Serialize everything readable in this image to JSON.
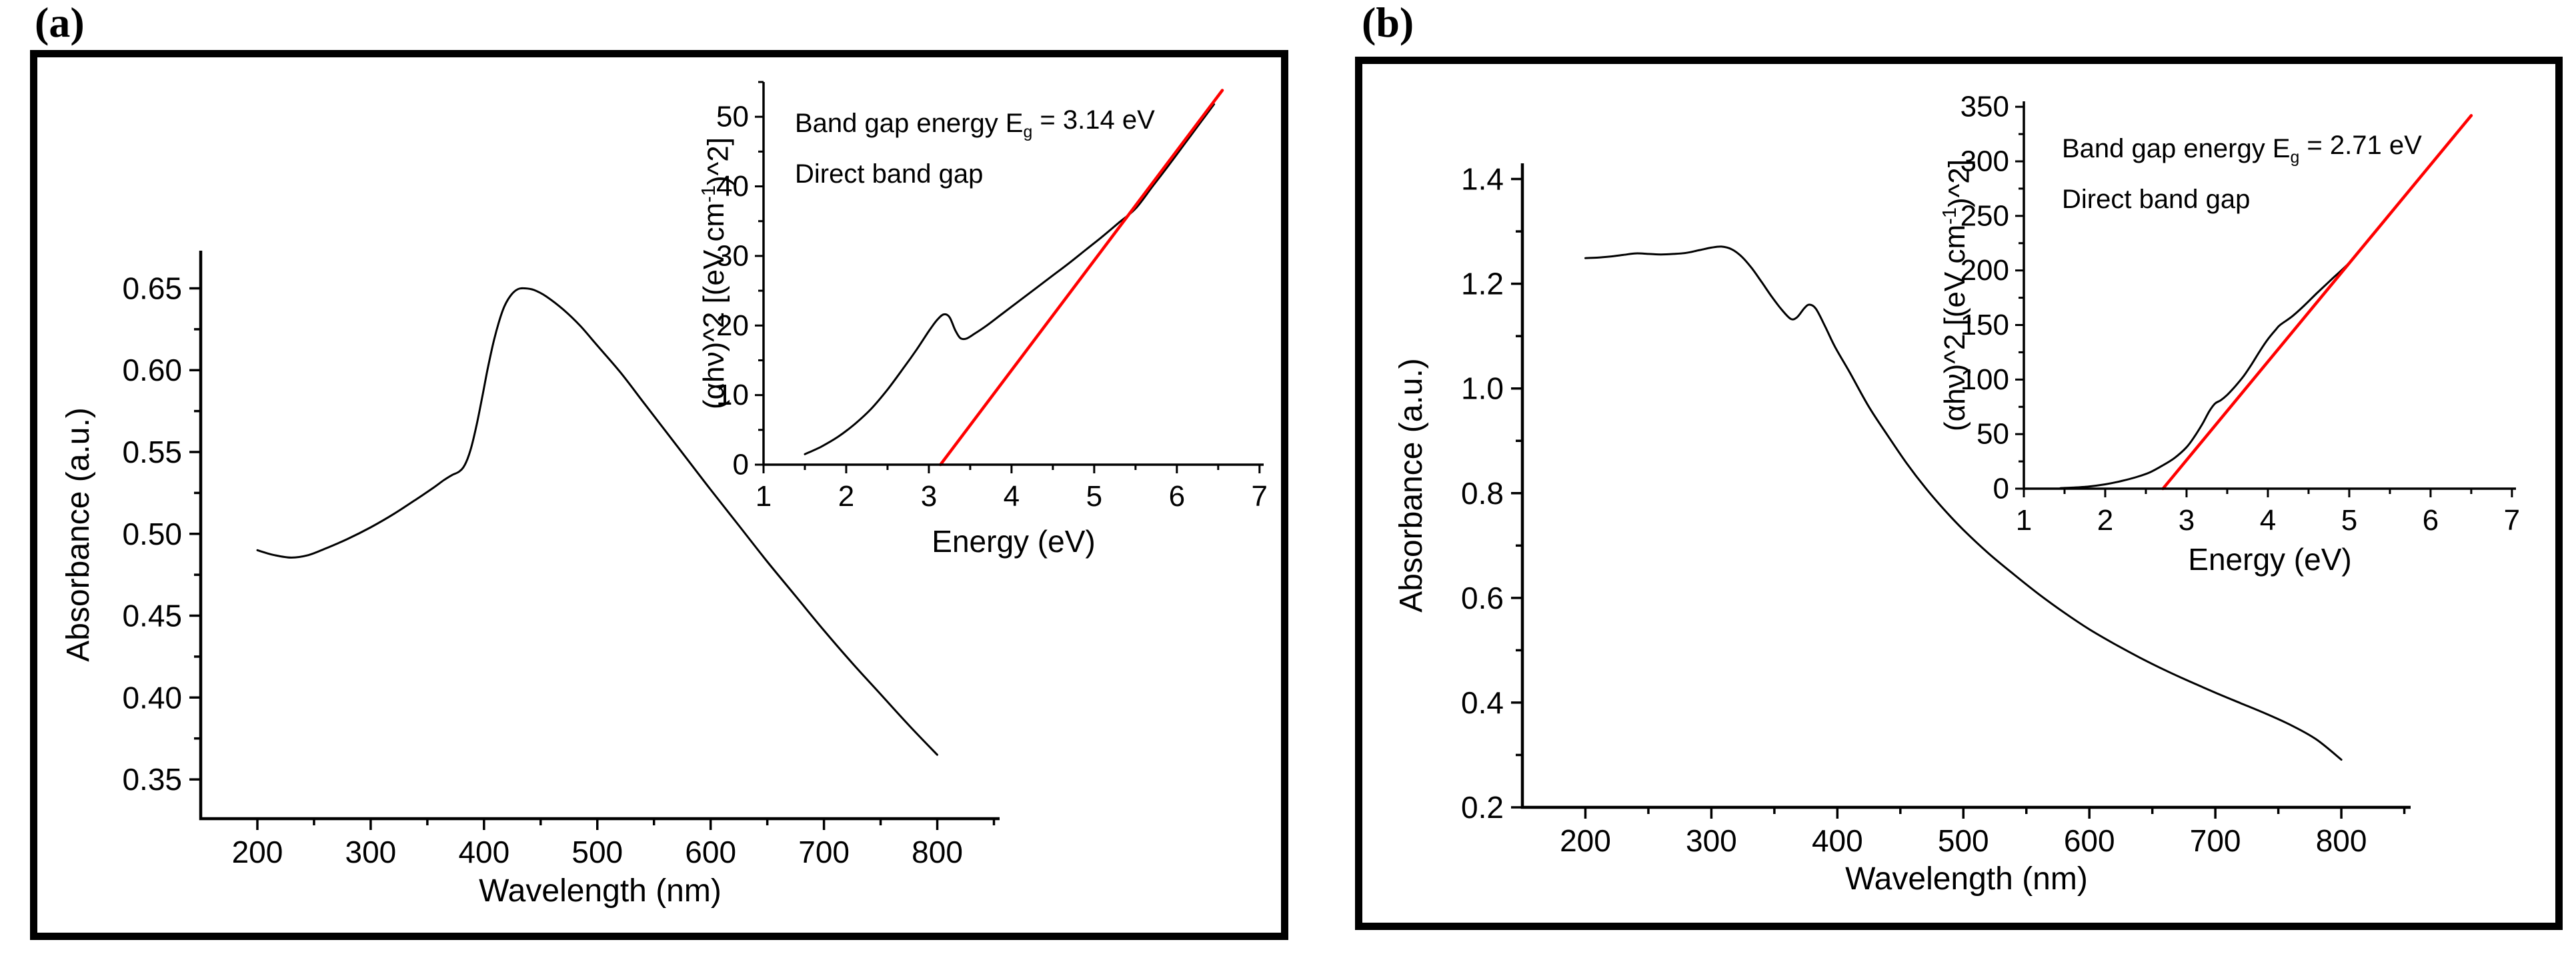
{
  "panels": [
    {
      "id": "a",
      "label": "(a)"
    },
    {
      "id": "b",
      "label": "(b)"
    }
  ],
  "colors": {
    "axis": "#000000",
    "curve": "#000000",
    "fit_line": "#ff0000",
    "background": "#ffffff"
  },
  "chart_data": [
    {
      "id": "main-a",
      "panel": "a",
      "type": "line",
      "title": "",
      "xlabel": "Wavelength (nm)",
      "ylabel": "Absorbance (a.u.)",
      "xlim": [
        150,
        855
      ],
      "ylim": [
        0.326,
        0.673
      ],
      "grid": false,
      "legend": "none",
      "x_major_ticks": [
        200,
        300,
        400,
        500,
        600,
        700,
        800
      ],
      "x_major_labels": [
        "200",
        "300",
        "400",
        "500",
        "600",
        "700",
        "800"
      ],
      "x_minor_ticks": [
        250,
        350,
        450,
        550,
        650,
        750,
        850
      ],
      "y_major_ticks": [
        0.35,
        0.4,
        0.45,
        0.5,
        0.55,
        0.6,
        0.65
      ],
      "y_major_labels": [
        "0.35",
        "0.40",
        "0.45",
        "0.50",
        "0.55",
        "0.60",
        "0.65"
      ],
      "y_minor_ticks": [
        0.375,
        0.425,
        0.475,
        0.525,
        0.575,
        0.625
      ],
      "series": [
        {
          "name": "absorbance-spectrum",
          "color": "#000000",
          "kind": "curve",
          "x": [
            200,
            215,
            230,
            245,
            260,
            280,
            300,
            320,
            340,
            355,
            365,
            372,
            378,
            383,
            388,
            393,
            398,
            403,
            408,
            413,
            418,
            424,
            430,
            436,
            444,
            455,
            470,
            485,
            500,
            520,
            540,
            560,
            580,
            600,
            625,
            650,
            675,
            700,
            725,
            750,
            775,
            800
          ],
          "y": [
            0.49,
            0.487,
            0.4855,
            0.487,
            0.491,
            0.497,
            0.504,
            0.512,
            0.521,
            0.528,
            0.533,
            0.536,
            0.538,
            0.542,
            0.551,
            0.565,
            0.582,
            0.6,
            0.616,
            0.629,
            0.639,
            0.646,
            0.6495,
            0.65,
            0.649,
            0.645,
            0.637,
            0.627,
            0.615,
            0.599,
            0.581,
            0.563,
            0.545,
            0.527,
            0.505,
            0.483,
            0.462,
            0.441,
            0.421,
            0.402,
            0.383,
            0.365
          ]
        }
      ]
    },
    {
      "id": "inset-a",
      "panel": "a",
      "type": "line",
      "title": "",
      "xlabel": "Energy (eV)",
      "ylabel": "(αhν)^2 [(eV cm⁻¹)^2]",
      "ylabel_parts": {
        "pre": "(αhν)^2 [(eV cm",
        "sup": "-1",
        "post": ")^2]"
      },
      "annotation": {
        "line1_pre": "Band gap energy E",
        "line1_sub": "g",
        "line1_post": " = 3.14 eV",
        "line2": "Direct band gap"
      },
      "band_gap_ev": 3.14,
      "xlim": [
        1,
        7.05
      ],
      "ylim": [
        0,
        55
      ],
      "grid": false,
      "legend": "none",
      "x_major_ticks": [
        1,
        2,
        3,
        4,
        5,
        6,
        7
      ],
      "x_major_labels": [
        "1",
        "2",
        "3",
        "4",
        "5",
        "6",
        "7"
      ],
      "x_minor_ticks": [
        1.5,
        2.5,
        3.5,
        4.5,
        5.5,
        6.5
      ],
      "y_major_ticks": [
        0,
        10,
        20,
        30,
        40,
        50
      ],
      "y_major_labels": [
        "0",
        "10",
        "20",
        "30",
        "40",
        "50"
      ],
      "y_minor_ticks": [
        5,
        15,
        25,
        35,
        45,
        55
      ],
      "series": [
        {
          "name": "tauc-curve",
          "color": "#000000",
          "kind": "curve",
          "x": [
            1.5,
            1.7,
            1.9,
            2.1,
            2.3,
            2.5,
            2.7,
            2.85,
            3.0,
            3.1,
            3.18,
            3.25,
            3.32,
            3.38,
            3.45,
            3.55,
            3.7,
            3.9,
            4.1,
            4.3,
            4.5,
            4.7,
            4.9,
            5.1,
            5.3,
            5.5,
            5.7,
            5.9,
            6.1,
            6.3,
            6.45
          ],
          "y": [
            1.5,
            2.6,
            4.0,
            5.8,
            8.0,
            10.8,
            14.0,
            16.5,
            19.2,
            20.8,
            21.6,
            21.2,
            19.3,
            18.2,
            18.1,
            18.8,
            20.0,
            21.8,
            23.6,
            25.4,
            27.2,
            29.0,
            30.9,
            32.8,
            34.8,
            36.8,
            39.9,
            43.0,
            46.2,
            49.4,
            51.8
          ]
        },
        {
          "name": "bandgap-fit-line",
          "color": "#ff0000",
          "kind": "fit",
          "x": [
            3.14,
            6.55
          ],
          "y": [
            0,
            53.8
          ]
        }
      ]
    },
    {
      "id": "main-b",
      "panel": "b",
      "type": "line",
      "title": "",
      "xlabel": "Wavelength (nm)",
      "ylabel": "Absorbance (a.u.)",
      "xlim": [
        150,
        855
      ],
      "ylim": [
        0.2,
        1.43
      ],
      "grid": false,
      "legend": "none",
      "x_major_ticks": [
        200,
        300,
        400,
        500,
        600,
        700,
        800
      ],
      "x_major_labels": [
        "200",
        "300",
        "400",
        "500",
        "600",
        "700",
        "800"
      ],
      "x_minor_ticks": [
        250,
        350,
        450,
        550,
        650,
        750,
        850
      ],
      "y_major_ticks": [
        0.2,
        0.4,
        0.6,
        0.8,
        1.0,
        1.2,
        1.4
      ],
      "y_major_labels": [
        "0.2",
        "0.4",
        "0.6",
        "0.8",
        "1.0",
        "1.2",
        "1.4"
      ],
      "y_minor_ticks": [
        0.3,
        0.5,
        0.7,
        0.9,
        1.1,
        1.3
      ],
      "series": [
        {
          "name": "absorbance-spectrum",
          "color": "#000000",
          "kind": "curve",
          "x": [
            200,
            210,
            220,
            230,
            240,
            250,
            260,
            270,
            280,
            290,
            300,
            308,
            316,
            324,
            332,
            340,
            348,
            356,
            363,
            368,
            374,
            378,
            383,
            390,
            398,
            410,
            425,
            440,
            455,
            470,
            485,
            500,
            520,
            540,
            560,
            580,
            600,
            620,
            640,
            660,
            680,
            700,
            720,
            740,
            760,
            780,
            800
          ],
          "y": [
            1.249,
            1.25,
            1.252,
            1.255,
            1.258,
            1.257,
            1.256,
            1.257,
            1.259,
            1.264,
            1.269,
            1.271,
            1.266,
            1.252,
            1.23,
            1.203,
            1.175,
            1.15,
            1.133,
            1.136,
            1.154,
            1.16,
            1.152,
            1.12,
            1.08,
            1.03,
            0.965,
            0.91,
            0.857,
            0.81,
            0.768,
            0.73,
            0.685,
            0.645,
            0.607,
            0.572,
            0.54,
            0.512,
            0.486,
            0.462,
            0.44,
            0.419,
            0.399,
            0.379,
            0.357,
            0.33,
            0.291
          ]
        }
      ]
    },
    {
      "id": "inset-b",
      "panel": "b",
      "type": "line",
      "title": "",
      "xlabel": "Energy (eV)",
      "ylabel": "(αhν)^2 [(eV cm⁻¹)^2]",
      "ylabel_parts": {
        "pre": "(αhν)^2 [(eV cm",
        "sup": "-1",
        "post": ")^2]"
      },
      "annotation": {
        "line1_pre": "Band gap energy E",
        "line1_sub": "g",
        "line1_post": " = 2.71 eV",
        "line2": "Direct band gap"
      },
      "band_gap_ev": 2.71,
      "xlim": [
        1,
        7.05
      ],
      "ylim": [
        0,
        355
      ],
      "grid": false,
      "legend": "none",
      "x_major_ticks": [
        1,
        2,
        3,
        4,
        5,
        6,
        7
      ],
      "x_major_labels": [
        "1",
        "2",
        "3",
        "4",
        "5",
        "6",
        "7"
      ],
      "x_minor_ticks": [
        1.5,
        2.5,
        3.5,
        4.5,
        5.5,
        6.5
      ],
      "y_major_ticks": [
        0,
        50,
        100,
        150,
        200,
        250,
        300,
        350
      ],
      "y_major_labels": [
        "0",
        "50",
        "100",
        "150",
        "200",
        "250",
        "300",
        "350"
      ],
      "y_minor_ticks": [
        25,
        75,
        125,
        175,
        225,
        275,
        325
      ],
      "series": [
        {
          "name": "tauc-curve",
          "color": "#000000",
          "kind": "curve",
          "x": [
            1.45,
            1.6,
            1.8,
            2.0,
            2.2,
            2.4,
            2.55,
            2.7,
            2.85,
            3.0,
            3.1,
            3.2,
            3.28,
            3.35,
            3.42,
            3.5,
            3.6,
            3.7,
            3.8,
            3.9,
            4.0,
            4.1,
            4.15,
            4.3,
            4.45,
            4.6,
            4.8,
            5.0,
            5.2,
            5.4,
            5.6,
            5.8,
            6.0,
            6.2,
            6.3
          ],
          "y": [
            0.5,
            1,
            2,
            4,
            7,
            11,
            15,
            21,
            28,
            38,
            48,
            60,
            71,
            78,
            81,
            86,
            94,
            103,
            114,
            126,
            137,
            146,
            150,
            158,
            168,
            179,
            193,
            207,
            225,
            243,
            261,
            279,
            297,
            315,
            324
          ]
        },
        {
          "name": "bandgap-fit-line",
          "color": "#ff0000",
          "kind": "fit",
          "x": [
            2.71,
            6.5
          ],
          "y": [
            0,
            342
          ]
        }
      ]
    }
  ]
}
